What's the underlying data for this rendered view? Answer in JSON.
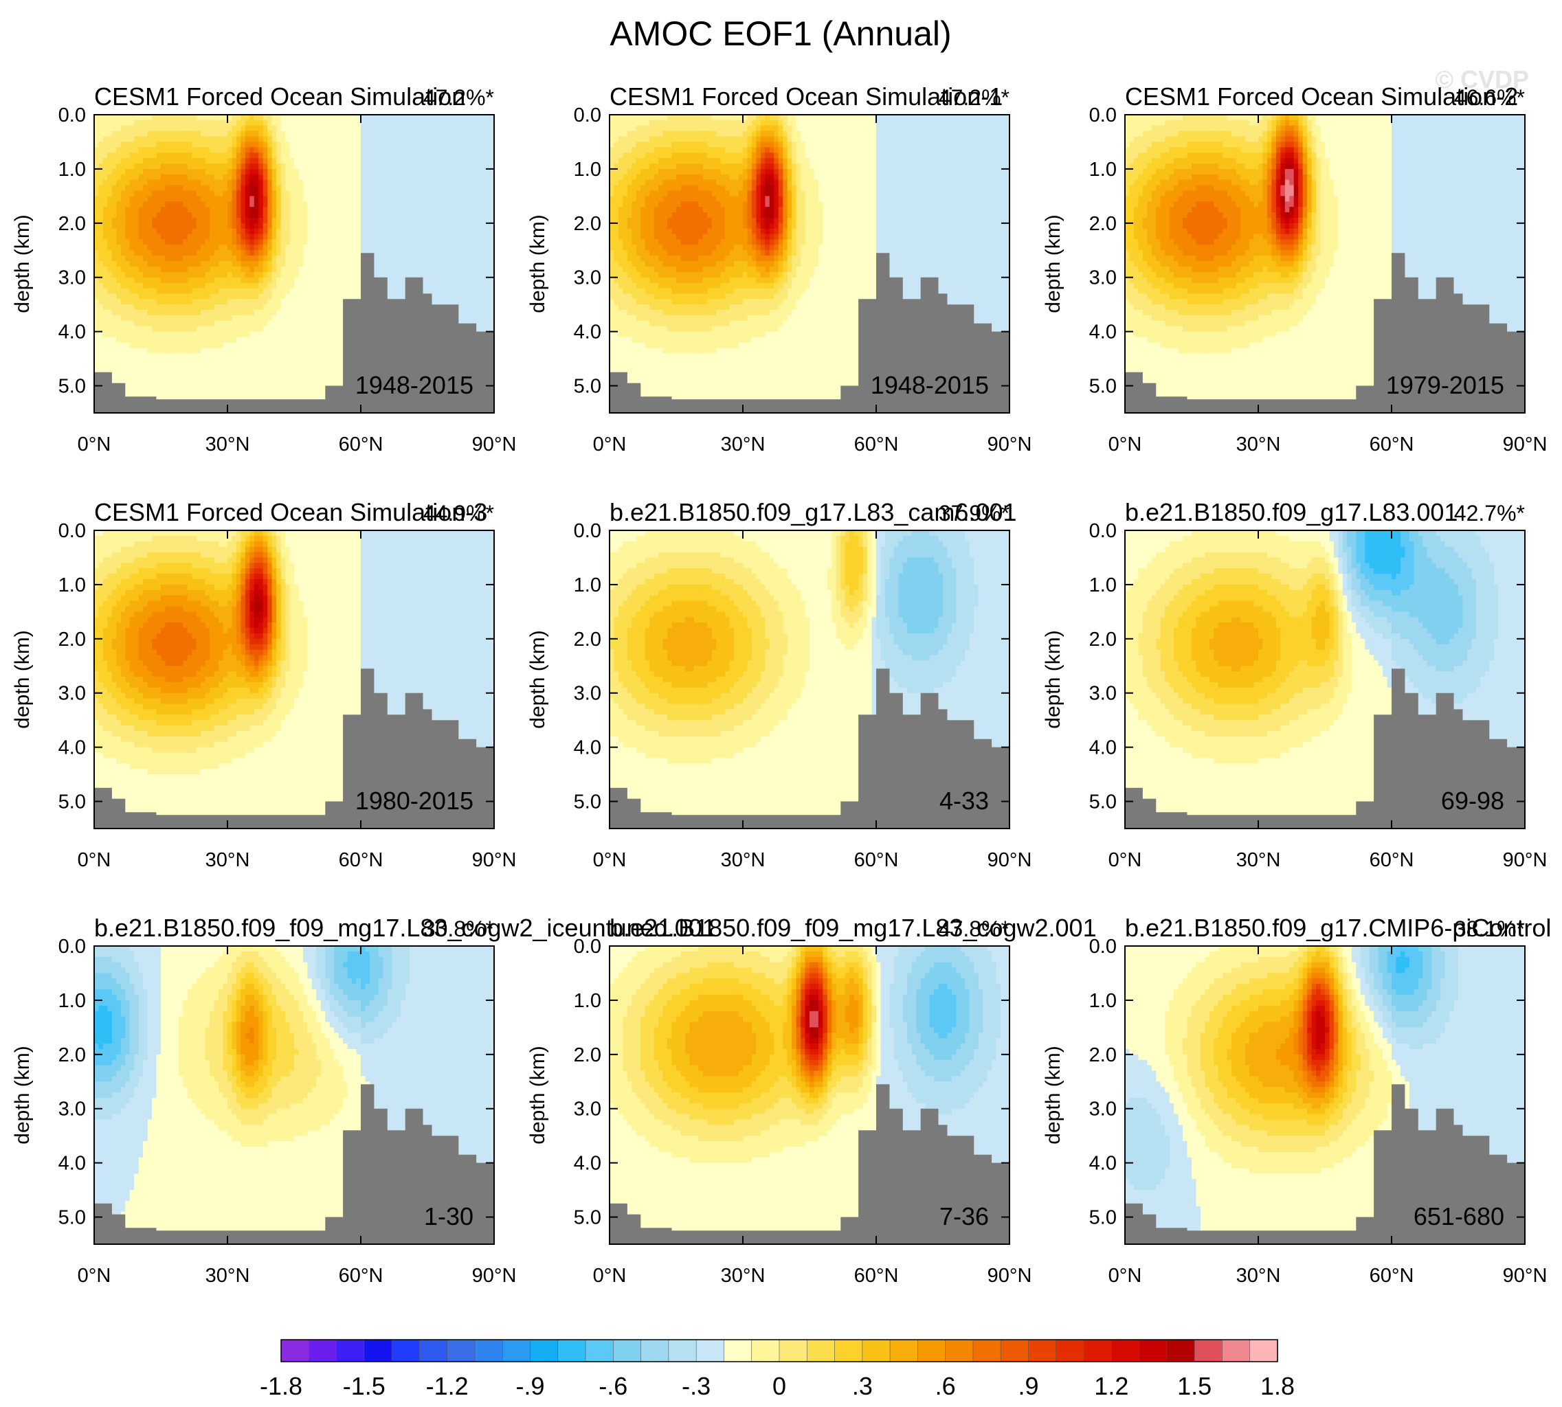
{
  "title": "AMOC EOF1 (Annual)",
  "watermark": "© CVDP",
  "colors": {
    "bathymetry": "#7a7a7a",
    "contour": "#333333",
    "frame": "#000000"
  },
  "axis": {
    "ylabel": "depth (km)",
    "yticks": [
      "0.0",
      "1.0",
      "2.0",
      "3.0",
      "4.0",
      "5.0"
    ],
    "xticks": [
      "0°N",
      "30°N",
      "60°N",
      "90°N"
    ],
    "xlim": [
      0,
      90
    ],
    "ylim_km": [
      0,
      5.5
    ]
  },
  "colorbar": {
    "labels": [
      "-1.8",
      "-1.5",
      "-1.2",
      "-.9",
      "-.6",
      "-.3",
      "0",
      ".3",
      ".6",
      ".9",
      "1.2",
      "1.5",
      "1.8"
    ],
    "colors": [
      "#8a2be2",
      "#6a1ef0",
      "#3b1ff5",
      "#1414f0",
      "#1f3cff",
      "#2e5af0",
      "#3a6ee6",
      "#2f84f0",
      "#2a9af2",
      "#15aef5",
      "#30bef7",
      "#5cc8f5",
      "#80d0f0",
      "#9dd8f0",
      "#b4e0f2",
      "#c8e6f5",
      "#ffffc8",
      "#fff59a",
      "#fde97a",
      "#fcdd4c",
      "#fbd12a",
      "#f9c114",
      "#f8ae0a",
      "#f79a00",
      "#f58600",
      "#f27000",
      "#ee5a00",
      "#ea4300",
      "#e52e00",
      "#e01a00",
      "#d60a00",
      "#c80000",
      "#b40000",
      "#e0505a",
      "#f08890",
      "#ffb4b8"
    ]
  },
  "chart_data": [
    {
      "type": "contour",
      "title": "CESM1 Forced Ocean Simulation",
      "percent": "47.2%*",
      "period": "1948-2015",
      "field": {
        "core": [
          {
            "lat": 36,
            "depth": 1.5,
            "amp": 1.9
          }
        ],
        "cell": {
          "lat": 18,
          "depth": 2.0,
          "amp": 0.95
        },
        "neg": []
      }
    },
    {
      "type": "contour",
      "title": "CESM1 Forced Ocean Simulation-1",
      "percent": "47.2%*",
      "period": "1948-2015",
      "field": {
        "core": [
          {
            "lat": 36,
            "depth": 1.5,
            "amp": 1.9
          }
        ],
        "cell": {
          "lat": 18,
          "depth": 2.0,
          "amp": 0.95
        },
        "neg": []
      }
    },
    {
      "type": "contour",
      "title": "CESM1 Forced Ocean Simulation-2",
      "percent": "46.6%*",
      "period": "1979-2015",
      "field": {
        "core": [
          {
            "lat": 37,
            "depth": 1.3,
            "amp": 2.1
          }
        ],
        "cell": {
          "lat": 18,
          "depth": 2.0,
          "amp": 0.95
        },
        "neg": []
      }
    },
    {
      "type": "contour",
      "title": "CESM1 Forced Ocean Simulation-3",
      "percent": "44.9%*",
      "period": "1980-2015",
      "field": {
        "core": [
          {
            "lat": 37,
            "depth": 1.3,
            "amp": 1.9
          }
        ],
        "cell": {
          "lat": 18,
          "depth": 2.1,
          "amp": 0.95
        },
        "neg": []
      }
    },
    {
      "type": "contour",
      "title": "b.e21.B1850.f09_g17.L83_cam6.001",
      "percent": "37.9%*",
      "period": "4-33",
      "field": {
        "core": [
          {
            "lat": 55,
            "depth": 0.6,
            "amp": 0.9
          }
        ],
        "cell": {
          "lat": 18,
          "depth": 2.1,
          "amp": 0.65
        },
        "neg": [
          {
            "lat": 70,
            "depth": 1.2,
            "amp": -0.35
          }
        ]
      }
    },
    {
      "type": "contour",
      "title": "b.e21.B1850.f09_g17.L83.001",
      "percent": "42.7%*",
      "period": "69-98",
      "field": {
        "core": [
          {
            "lat": 45,
            "depth": 1.5,
            "amp": 0.75
          }
        ],
        "cell": {
          "lat": 25,
          "depth": 2.1,
          "amp": 0.65
        },
        "neg": [
          {
            "lat": 57,
            "depth": 0.3,
            "amp": -0.6
          },
          {
            "lat": 72,
            "depth": 1.5,
            "amp": -0.3
          }
        ]
      }
    },
    {
      "type": "contour",
      "title": "b.e21.B1850.f09_f09_mg17.L83_cogw2_iceuntuned.001",
      "percent": "30.8%*",
      "period": "1-30",
      "field": {
        "core": [
          {
            "lat": 35,
            "depth": 1.6,
            "amp": 0.7
          }
        ],
        "cell": {
          "lat": 40,
          "depth": 1.8,
          "amp": 0.35
        },
        "neg": [
          {
            "lat": 2,
            "depth": 1.5,
            "amp": -0.55
          },
          {
            "lat": 58,
            "depth": 0.5,
            "amp": -0.5
          }
        ]
      }
    },
    {
      "type": "contour",
      "title": "b.e21.B1850.f09_f09_mg17.L83_cogw2.001",
      "percent": "47.8%*",
      "period": "7-36",
      "field": {
        "core": [
          {
            "lat": 46,
            "depth": 1.3,
            "amp": 1.95
          },
          {
            "lat": 55,
            "depth": 1.2,
            "amp": 1.1
          }
        ],
        "cell": {
          "lat": 25,
          "depth": 1.8,
          "amp": 0.7
        },
        "neg": [
          {
            "lat": 75,
            "depth": 1.2,
            "amp": -0.4
          }
        ]
      }
    },
    {
      "type": "contour",
      "title": "b.e21.B1850.f09_g17.CMIP6-piControl",
      "percent": "38.1%*",
      "period": "651-680",
      "field": {
        "core": [
          {
            "lat": 44,
            "depth": 1.4,
            "amp": 1.5
          }
        ],
        "cell": {
          "lat": 35,
          "depth": 2.0,
          "amp": 0.7
        },
        "neg": [
          {
            "lat": 62,
            "depth": 0.4,
            "amp": -0.5
          },
          {
            "lat": 5,
            "depth": 3.5,
            "amp": -0.2
          }
        ]
      }
    }
  ]
}
